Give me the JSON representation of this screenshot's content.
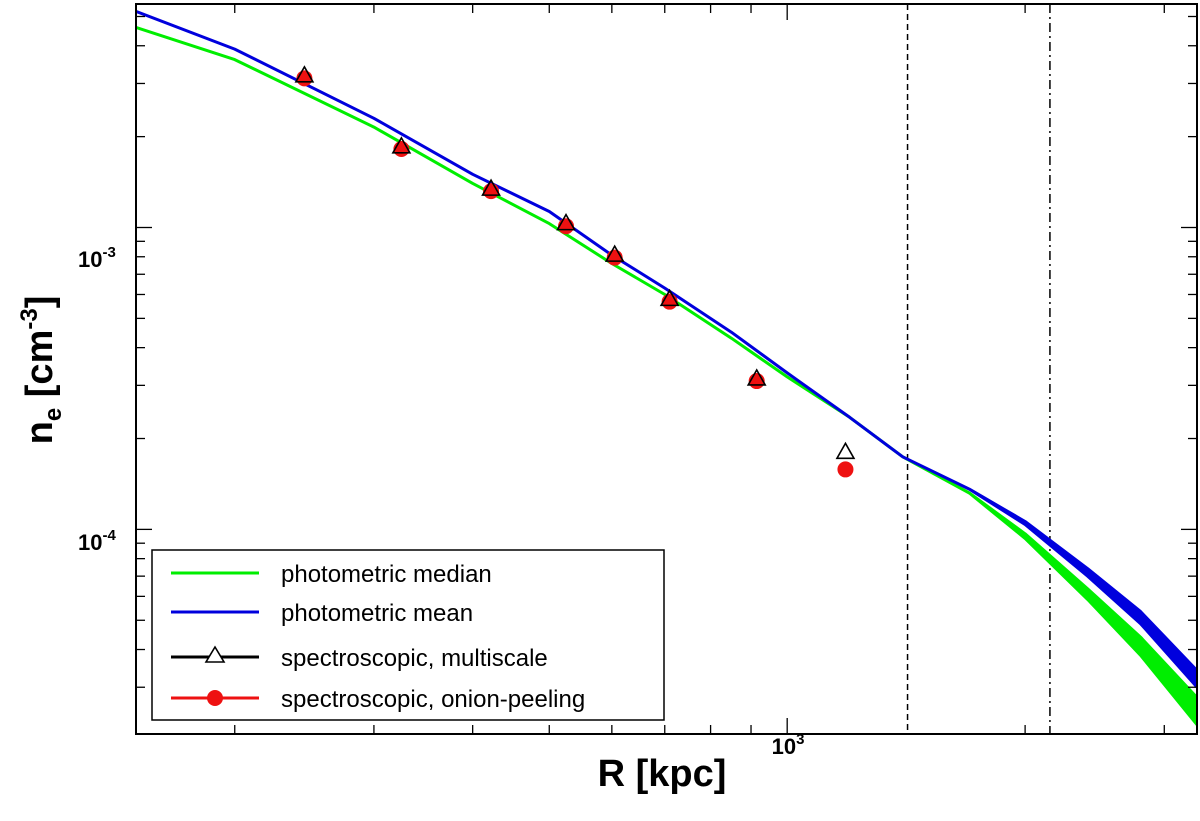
{
  "chart_data": {
    "type": "line",
    "xscale": "log",
    "yscale": "log",
    "xlim": [
      150,
      3300
    ],
    "ylim": [
      2.1e-05,
      0.0055
    ],
    "xlabel": {
      "main": "R [kpc]"
    },
    "ylabel": {
      "main": "n",
      "sub": "e",
      "mid": " [cm",
      "sup": "-3",
      "end": "]"
    },
    "x_tick_labels": [
      {
        "value": 1000,
        "base": "10",
        "exp": "3"
      }
    ],
    "y_tick_labels": [
      {
        "value": 0.001,
        "base": "10",
        "exp": "-3"
      },
      {
        "value": 0.0001,
        "base": "10",
        "exp": "-4"
      }
    ],
    "vlines": [
      {
        "x": 1420,
        "style": "dashed",
        "name": "vline-dashed"
      },
      {
        "x": 2150,
        "style": "dashdot",
        "name": "vline-dashdot"
      }
    ],
    "series": [
      {
        "name": "photometric median",
        "kind": "line",
        "color": "#00ee00",
        "points": [
          [
            150,
            0.0046
          ],
          [
            200,
            0.0036
          ],
          [
            300,
            0.00215
          ],
          [
            400,
            0.0014
          ],
          [
            500,
            0.00103
          ],
          [
            600,
            0.00076
          ],
          [
            700,
            0.0006
          ],
          [
            850,
            0.00043
          ],
          [
            1000,
            0.00032
          ],
          [
            1200,
            0.000235
          ],
          [
            1400,
            0.000174
          ],
          [
            1700,
            0.000132
          ],
          [
            2000,
            9.5e-05
          ],
          [
            2400,
            6.1e-05
          ],
          [
            2800,
            4.1e-05
          ],
          [
            3300,
            2.5e-05
          ]
        ],
        "band_width": [
          0,
          0,
          0,
          0,
          0,
          0,
          0,
          0,
          0,
          0,
          0,
          0,
          0.015,
          0.035,
          0.06,
          0.09
        ]
      },
      {
        "name": "photometric mean",
        "kind": "line",
        "color": "#0000dd",
        "points": [
          [
            150,
            0.0052
          ],
          [
            200,
            0.0039
          ],
          [
            300,
            0.0023
          ],
          [
            400,
            0.0015
          ],
          [
            500,
            0.00113
          ],
          [
            600,
            0.00081
          ],
          [
            700,
            0.00063
          ],
          [
            850,
            0.00045
          ],
          [
            1000,
            0.00033
          ],
          [
            1200,
            0.000235
          ],
          [
            1400,
            0.000174
          ],
          [
            1700,
            0.000136
          ],
          [
            2000,
            0.000105
          ],
          [
            2400,
            7.2e-05
          ],
          [
            2800,
            5.1e-05
          ],
          [
            3300,
            3.2e-05
          ]
        ],
        "band_width": [
          0,
          0,
          0,
          0,
          0,
          0,
          0,
          0,
          0,
          0,
          0,
          0,
          0.01,
          0.025,
          0.04,
          0.055
        ]
      },
      {
        "name": "spectroscopic, multiscale",
        "kind": "marker",
        "marker": "triangle",
        "color": "#000000",
        "points": [
          [
            245,
            0.00318
          ],
          [
            325,
            0.00185
          ],
          [
            422,
            0.00134
          ],
          [
            525,
            0.00103
          ],
          [
            605,
            0.00081
          ],
          [
            710,
            0.000578
          ],
          [
            915,
            0.000315
          ],
          [
            1185,
            0.00018
          ]
        ]
      },
      {
        "name": "spectroscopic, onion-peeling",
        "kind": "marker",
        "marker": "circle",
        "color": "#ee1111",
        "points": [
          [
            245,
            0.00312
          ],
          [
            325,
            0.00182
          ],
          [
            422,
            0.00132
          ],
          [
            525,
            0.00101
          ],
          [
            605,
            0.000795
          ],
          [
            710,
            0.000568
          ],
          [
            915,
            0.00031
          ],
          [
            1185,
            0.000158
          ]
        ]
      }
    ],
    "legend": {
      "position": "lower-left",
      "entries": [
        {
          "label": "photometric median",
          "color": "#00ee00",
          "marker": "none"
        },
        {
          "label": "photometric mean",
          "color": "#0000dd",
          "marker": "none"
        },
        {
          "label": "spectroscopic, multiscale",
          "color": "#000000",
          "marker": "triangle"
        },
        {
          "label": "spectroscopic, onion-peeling",
          "color": "#ee1111",
          "marker": "circle"
        }
      ]
    }
  }
}
